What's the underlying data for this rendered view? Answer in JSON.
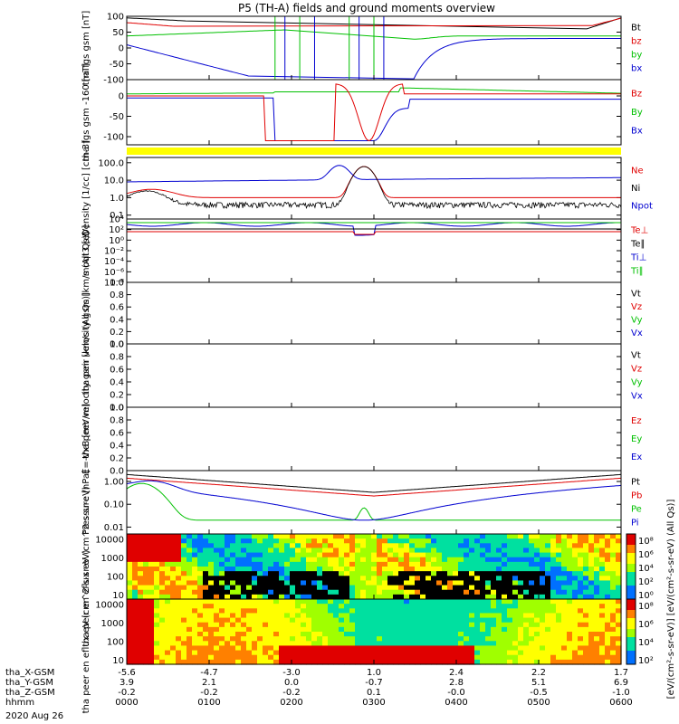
{
  "title": "P5 (TH-A) fields and ground moments overview",
  "date_label": "2020 Aug 26",
  "colors": {
    "black": "#000000",
    "red": "#e00000",
    "green": "#00c000",
    "blue": "#0000d0",
    "yellow": "#ffff00"
  },
  "chart_data": [
    {
      "type": "line",
      "id": "fgs",
      "ylabel": "tha fgs gsm [nT]",
      "ylim": [
        -100,
        100
      ],
      "yticks": [
        "100",
        "50",
        "0",
        "-50",
        "-100"
      ],
      "legend": [
        {
          "text": "Bt",
          "color": "black"
        },
        {
          "text": "bz",
          "color": "red"
        },
        {
          "text": "by",
          "color": "green"
        },
        {
          "text": "bx",
          "color": "blue"
        }
      ]
    },
    {
      "type": "line",
      "id": "fgs_dsl",
      "ylabel": "tha fgs gsm -160 [nT]",
      "ylim": [
        -120,
        40
      ],
      "yticks": [
        "0",
        "-50",
        "-100"
      ],
      "legend": [
        {
          "text": "Bz",
          "color": "red"
        },
        {
          "text": "By",
          "color": "green"
        },
        {
          "text": "Bx",
          "color": "blue"
        }
      ]
    },
    {
      "type": "line",
      "id": "density",
      "ylabel": "Density [1/cc] [cm-3]",
      "ylim": [
        0.1,
        100
      ],
      "yticks": [
        "100.0",
        "10.0",
        "1.0",
        "0.1"
      ],
      "legend": [
        {
          "text": "Ne",
          "color": "red"
        },
        {
          "text": "Ni",
          "color": "black"
        },
        {
          "text": "Npot",
          "color": "blue"
        }
      ]
    },
    {
      "type": "line",
      "id": "temp",
      "ylabel": "moqt3 [eV]",
      "yticks": [
        "10⁴",
        "10²",
        "10⁰",
        "10⁻²",
        "10⁻⁴",
        "10⁻⁶",
        "10⁻⁸"
      ],
      "legend": [
        {
          "text": "Te⊥",
          "color": "red"
        },
        {
          "text": "Te∥",
          "color": "black"
        },
        {
          "text": "Ti⊥",
          "color": "blue"
        },
        {
          "text": "Ti∥",
          "color": "green"
        }
      ]
    },
    {
      "type": "line",
      "id": "peir_vel",
      "ylabel": "tha peir velocity gsm [km/s (All Qs)]",
      "ylim": [
        0,
        1
      ],
      "yticks": [
        "1.0",
        "0.8",
        "0.6",
        "0.4",
        "0.2",
        "0.0"
      ],
      "legend": [
        {
          "text": "Vt",
          "color": "black"
        },
        {
          "text": "Vz",
          "color": "red"
        },
        {
          "text": "Vy",
          "color": "green"
        },
        {
          "text": "Vx",
          "color": "blue"
        }
      ]
    },
    {
      "type": "line",
      "id": "peer_vel",
      "ylabel": "tha peer velocity gsm [km/s (All Qs)]",
      "ylim": [
        0,
        1
      ],
      "yticks": [
        "1.0",
        "0.8",
        "0.6",
        "0.4",
        "0.2",
        "0.0"
      ],
      "legend": [
        {
          "text": "Vt",
          "color": "black"
        },
        {
          "text": "Vz",
          "color": "red"
        },
        {
          "text": "Vy",
          "color": "green"
        },
        {
          "text": "Vx",
          "color": "blue"
        }
      ]
    },
    {
      "type": "line",
      "id": "efield",
      "ylabel": "E=-VxB [mV/m]",
      "ylim": [
        0,
        1
      ],
      "yticks": [
        "1.0",
        "0.8",
        "0.6",
        "0.4",
        "0.2",
        "0.0"
      ],
      "legend": [
        {
          "text": "Ez",
          "color": "red"
        },
        {
          "text": "Ey",
          "color": "green"
        },
        {
          "text": "Ex",
          "color": "blue"
        }
      ]
    },
    {
      "type": "line",
      "id": "pressure",
      "ylabel": "Pressure [nPa]",
      "ylim": [
        0.005,
        3
      ],
      "yticks": [
        "1.00",
        "0.10",
        "0.01"
      ],
      "legend": [
        {
          "text": "Pt",
          "color": "black"
        },
        {
          "text": "Pb",
          "color": "red"
        },
        {
          "text": "Pe",
          "color": "green"
        },
        {
          "text": "Pi",
          "color": "blue"
        }
      ]
    },
    {
      "type": "heatmap",
      "id": "peir_spec",
      "ylabel": "tha peir en eflux eV (cm^2-s-sr-eV)",
      "ylim": [
        5,
        20000
      ],
      "yticks": [
        "10000",
        "1000",
        "100",
        "10"
      ]
    },
    {
      "type": "heatmap",
      "id": "peer_spec",
      "ylabel": "tha peer en eflux eV (cm^2-s-sr-eV)",
      "ylim": [
        5,
        20000
      ],
      "yticks": [
        "10000",
        "1000",
        "100",
        "10"
      ]
    }
  ],
  "colorbar": {
    "label": "[eV/(cm²-s-sr-eV)] [eV/(cm²-s-sr-eV) (All Qs)]",
    "ticks_top": [
      "10⁸",
      "10⁶",
      "10⁴",
      "10²",
      "10⁰"
    ],
    "ticks_bottom": [
      "10⁸",
      "10⁶",
      "10⁴",
      "10²"
    ]
  },
  "xaxis": {
    "rows": [
      {
        "label": "tha_X-GSM",
        "values": [
          "-5.6",
          "-4.7",
          "-3.0",
          "1.0",
          "2.4",
          "2.2",
          "1.7"
        ]
      },
      {
        "label": "tha_Y-GSM",
        "values": [
          "3.9",
          "2.1",
          "0.0",
          "-0.7",
          "2.8",
          "5.1",
          "6.9"
        ]
      },
      {
        "label": "tha_Z-GSM",
        "values": [
          "-0.2",
          "-0.2",
          "-0.2",
          "0.1",
          "-0.0",
          "-0.5",
          "-1.0"
        ]
      },
      {
        "label": "hhmm",
        "values": [
          "0000",
          "0100",
          "0200",
          "0300",
          "0400",
          "0500",
          "0600"
        ]
      }
    ]
  }
}
